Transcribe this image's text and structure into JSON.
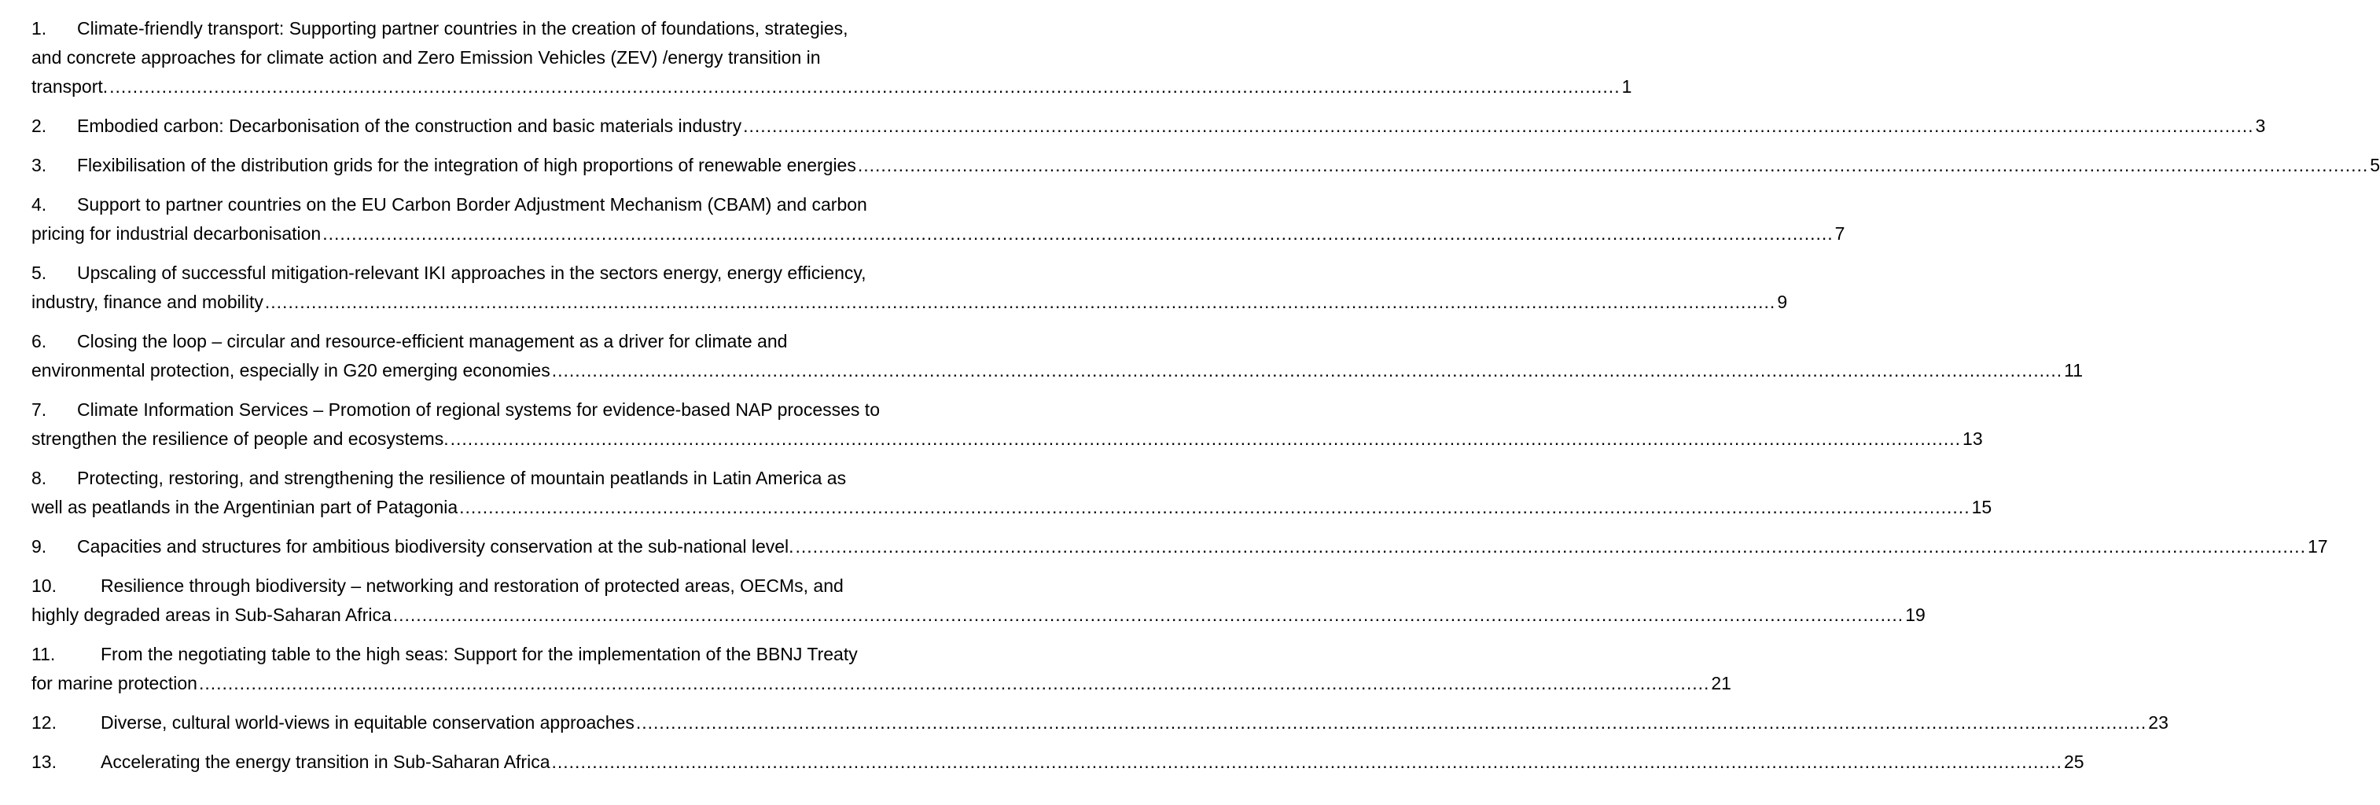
{
  "entries": [
    {
      "num": "1.",
      "lines": [
        "Climate-friendly transport: Supporting partner countries in the creation of foundations, strategies,",
        "and concrete approaches for climate action and Zero Emission Vehicles (ZEV) /energy transition in"
      ],
      "last": "transport.",
      "page": "1"
    },
    {
      "num": "2.",
      "lines": [],
      "last": "Embodied carbon: Decarbonisation of the construction and basic materials industry",
      "page": "3"
    },
    {
      "num": "3.",
      "lines": [],
      "last": "Flexibilisation of the distribution grids for the integration of high proportions of renewable energies",
      "page": "5"
    },
    {
      "num": "4.",
      "lines": [
        "Support to partner countries on the EU Carbon Border Adjustment Mechanism (CBAM) and carbon"
      ],
      "last": "pricing for industrial decarbonisation",
      "page": "7"
    },
    {
      "num": "5.",
      "lines": [
        "Upscaling of successful mitigation-relevant IKI approaches in the sectors energy, energy efficiency,"
      ],
      "last": "industry, finance and mobility",
      "page": "9"
    },
    {
      "num": "6.",
      "lines": [
        "Closing the loop – circular and resource-efficient management as a driver for climate and"
      ],
      "last": "environmental protection, especially in G20 emerging economies",
      "page": "11"
    },
    {
      "num": "7.",
      "lines": [
        "Climate Information Services – Promotion of regional systems for evidence-based NAP processes to"
      ],
      "last": "strengthen the resilience of people and ecosystems.",
      "page": "13"
    },
    {
      "num": "8.",
      "lines": [
        "Protecting, restoring, and strengthening the resilience of mountain peatlands in Latin America as"
      ],
      "last": "well as peatlands in the Argentinian part of Patagonia",
      "page": "15"
    },
    {
      "num": "9.",
      "lines": [],
      "last": "Capacities and structures for ambitious biodiversity conservation at the sub-national level.",
      "page": "17"
    },
    {
      "num": "10.",
      "lines": [
        "Resilience through biodiversity – networking and restoration of protected areas, OECMs, and"
      ],
      "last": "highly degraded areas in Sub-Saharan Africa",
      "page": "19"
    },
    {
      "num": "11.",
      "lines": [
        "From the negotiating table to the high seas: Support for the implementation of the BBNJ Treaty"
      ],
      "last": "for marine protection",
      "page": "21"
    },
    {
      "num": "12.",
      "lines": [],
      "last": "Diverse, cultural world-views in equitable conservation approaches",
      "page": "23"
    },
    {
      "num": "13.",
      "lines": [],
      "last": "Accelerating the energy transition in Sub-Saharan Africa",
      "page": "25"
    }
  ]
}
